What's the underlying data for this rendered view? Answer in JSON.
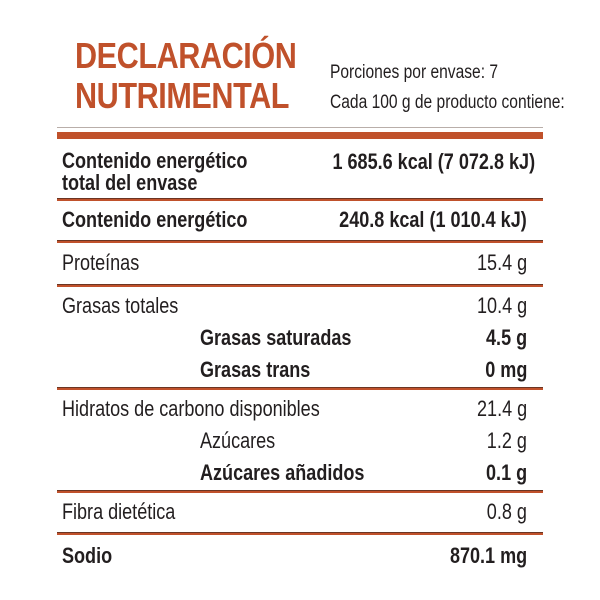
{
  "colors": {
    "accent": "#C0512B",
    "rule_dark_edge": "#6B3523",
    "ghost_line": "#B9AEA9",
    "text": "#221E1F"
  },
  "header": {
    "title_line1": "DECLARACIÓN",
    "title_line2": "NUTRIMENTAL",
    "portions": "Porciones por envase: 7",
    "per_amount": "Cada 100 g de producto contiene:"
  },
  "table": {
    "rows": [
      {
        "name": "Contenido energético total del envase",
        "name_line1": "Contenido energético",
        "name_line2": "total del envase",
        "value": "1 685.6 kcal (7 072.8 kJ)"
      },
      {
        "name": "Contenido energético",
        "value": "240.8 kcal (1 010.4 kJ)"
      },
      {
        "name": "Proteínas",
        "value": "15.4 g"
      },
      {
        "name": "Grasas totales",
        "value": "10.4 g"
      },
      {
        "name": "Grasas saturadas",
        "value": "4.5 g"
      },
      {
        "name": "Grasas trans",
        "value": "0 mg"
      },
      {
        "name": "Hidratos de carbono disponibles",
        "value": "21.4 g"
      },
      {
        "name": "Azúcares",
        "value": "1.2 g"
      },
      {
        "name": "Azúcares añadidos",
        "value": "0.1 g"
      },
      {
        "name": "Fibra dietética",
        "value": "0.8 g"
      },
      {
        "name": "Sodio",
        "value": "870.1 mg"
      }
    ]
  }
}
